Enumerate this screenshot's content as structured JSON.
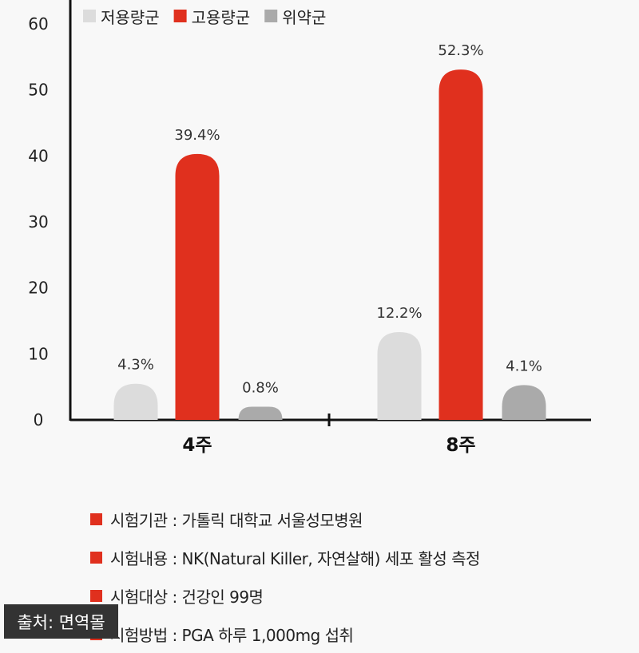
{
  "chart_data": {
    "type": "bar",
    "categories": [
      "4주",
      "8주"
    ],
    "series": [
      {
        "name": "저용량군",
        "color": "#dcdcdc",
        "values": [
          4.3,
          12.2
        ],
        "labels": [
          "4.3%",
          "12.2%"
        ]
      },
      {
        "name": "고용량군",
        "color": "#e0301e",
        "values": [
          39.4,
          52.3
        ],
        "labels": [
          "39.4%",
          "52.3%"
        ]
      },
      {
        "name": "위약군",
        "color": "#aaaaaa",
        "values": [
          0.8,
          4.1
        ],
        "labels": [
          "0.8%",
          "4.1%"
        ]
      }
    ],
    "yticks": [
      0,
      10,
      20,
      30,
      40,
      50,
      60
    ],
    "ylim": [
      0,
      60
    ],
    "legend": "top-left",
    "grid": false
  },
  "notes": [
    "시험기관 : 가톨릭 대학교 서울성모병원",
    "시험내용 : NK(Natural Killer, 자연살해) 세포 활성 측정",
    "시험대상 : 건강인 99명",
    "시험방법 : PGA 하루 1,000mg 섭취"
  ],
  "source": "출처: 면역몰"
}
